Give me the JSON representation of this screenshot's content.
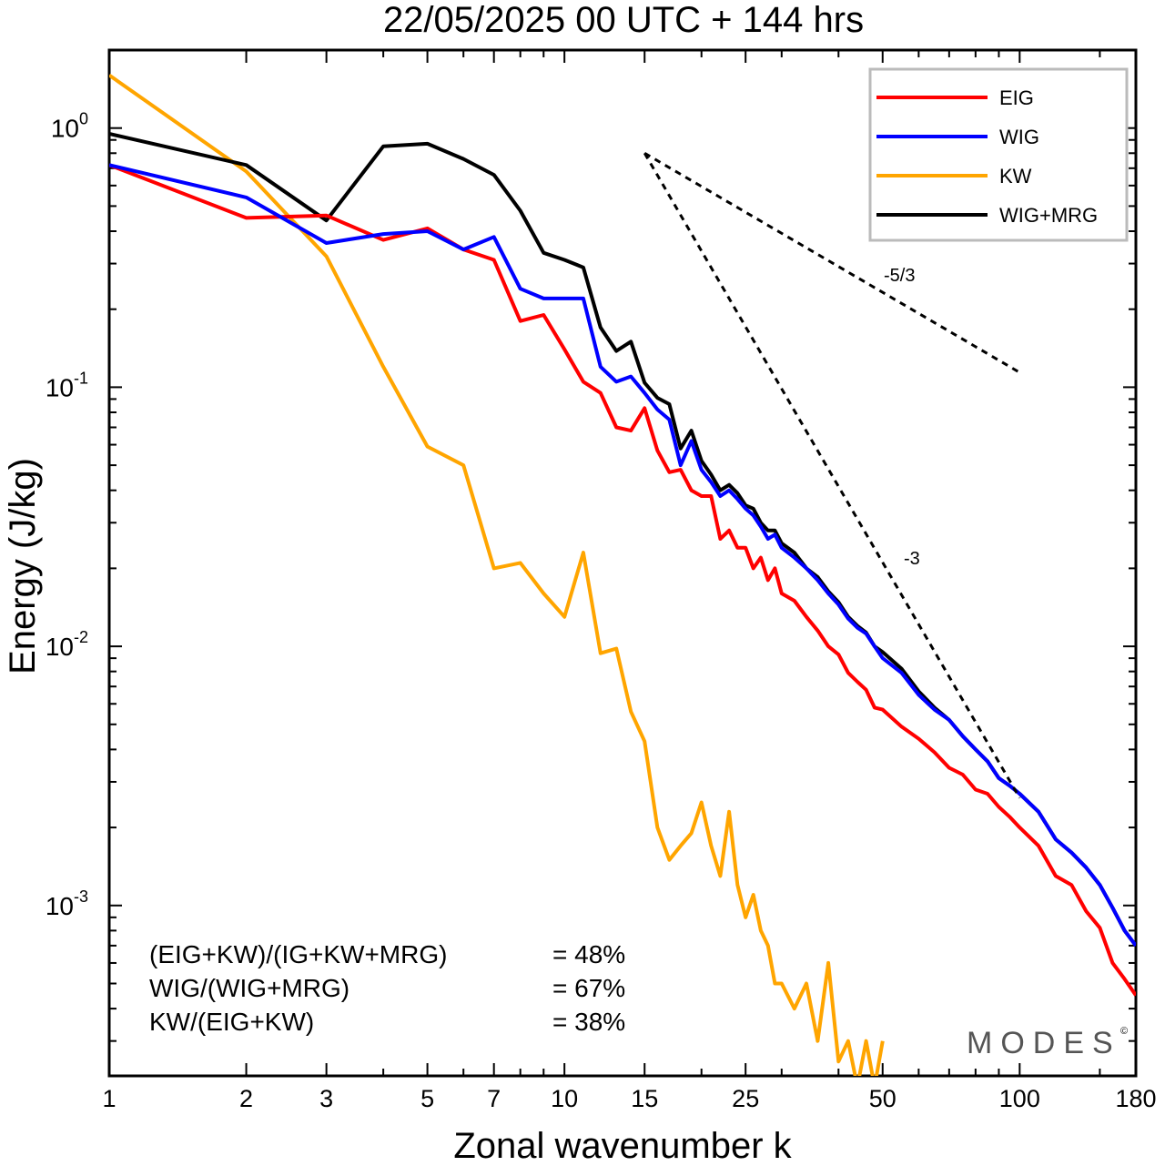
{
  "chart_data": {
    "type": "line",
    "title": "22/05/2025  00 UTC  + 144 hrs",
    "xlabel": "Zonal wavenumber k",
    "ylabel": "Energy (J/kg)",
    "xscale": "log",
    "yscale": "log",
    "xlim": [
      1,
      180
    ],
    "ylim": [
      0.00022,
      2.0
    ],
    "xticks": [
      1,
      2,
      3,
      5,
      7,
      10,
      15,
      25,
      50,
      100,
      180
    ],
    "xtick_labels": [
      "1",
      "2",
      "3",
      "5",
      "7",
      "10",
      "15",
      "25",
      "50",
      "100",
      "180"
    ],
    "yticks": [
      {
        "value": 1,
        "base": "10",
        "exp": "0"
      },
      {
        "value": 0.1,
        "base": "10",
        "exp": "-1"
      },
      {
        "value": 0.01,
        "base": "10",
        "exp": "-2"
      },
      {
        "value": 0.001,
        "base": "10",
        "exp": "-3"
      }
    ],
    "legend_position": "top-right",
    "grid": false,
    "series": [
      {
        "name": "EIG",
        "color": "#ff0000",
        "x": [
          1,
          2,
          3,
          4,
          5,
          6,
          7,
          8,
          9,
          10,
          11,
          12,
          13,
          14,
          15,
          16,
          17,
          18,
          19,
          20,
          21,
          22,
          23,
          24,
          25,
          26,
          27,
          28,
          29,
          30,
          32,
          34,
          36,
          38,
          40,
          42,
          44,
          46,
          48,
          50,
          55,
          60,
          65,
          70,
          75,
          80,
          85,
          90,
          95,
          100,
          110,
          120,
          130,
          140,
          150,
          160,
          170,
          180
        ],
        "values": [
          0.72,
          0.45,
          0.46,
          0.37,
          0.41,
          0.34,
          0.31,
          0.18,
          0.19,
          0.14,
          0.105,
          0.095,
          0.07,
          0.068,
          0.083,
          0.057,
          0.047,
          0.048,
          0.04,
          0.038,
          0.038,
          0.026,
          0.028,
          0.024,
          0.024,
          0.02,
          0.022,
          0.018,
          0.02,
          0.016,
          0.015,
          0.013,
          0.0115,
          0.01,
          0.0093,
          0.0079,
          0.0073,
          0.0068,
          0.0058,
          0.0057,
          0.0049,
          0.0044,
          0.0039,
          0.0034,
          0.0032,
          0.0028,
          0.0027,
          0.0024,
          0.0022,
          0.002,
          0.0017,
          0.0013,
          0.0012,
          0.00095,
          0.00082,
          0.0006,
          0.00052,
          0.00045
        ]
      },
      {
        "name": "WIG",
        "color": "#0000ff",
        "x": [
          1,
          2,
          3,
          4,
          5,
          6,
          7,
          8,
          9,
          10,
          11,
          12,
          13,
          14,
          15,
          16,
          17,
          18,
          19,
          20,
          21,
          22,
          23,
          24,
          25,
          26,
          27,
          28,
          29,
          30,
          32,
          34,
          36,
          38,
          40,
          42,
          44,
          46,
          48,
          50,
          55,
          60,
          65,
          70,
          75,
          80,
          85,
          90,
          95,
          100,
          110,
          120,
          130,
          140,
          150,
          160,
          170,
          180
        ],
        "values": [
          0.72,
          0.54,
          0.36,
          0.39,
          0.4,
          0.34,
          0.38,
          0.24,
          0.22,
          0.22,
          0.22,
          0.12,
          0.105,
          0.11,
          0.095,
          0.082,
          0.075,
          0.05,
          0.062,
          0.048,
          0.043,
          0.038,
          0.04,
          0.037,
          0.034,
          0.032,
          0.029,
          0.026,
          0.027,
          0.024,
          0.022,
          0.02,
          0.018,
          0.016,
          0.0145,
          0.0128,
          0.0118,
          0.0112,
          0.01,
          0.009,
          0.0079,
          0.0065,
          0.0057,
          0.0052,
          0.0045,
          0.004,
          0.0036,
          0.0031,
          0.0029,
          0.0027,
          0.0023,
          0.0018,
          0.0016,
          0.0014,
          0.0012,
          0.00098,
          0.0008,
          0.0007
        ]
      },
      {
        "name": "KW",
        "color": "#ffa500",
        "x": [
          1,
          2,
          3,
          4,
          5,
          6,
          7,
          8,
          9,
          10,
          11,
          12,
          13,
          14,
          15,
          16,
          17,
          18,
          19,
          20,
          21,
          22,
          23,
          24,
          25,
          26,
          27,
          28,
          29,
          30,
          32,
          34,
          36,
          38,
          40,
          42,
          44,
          46,
          48,
          50
        ],
        "values": [
          1.6,
          0.68,
          0.32,
          0.12,
          0.059,
          0.05,
          0.02,
          0.021,
          0.016,
          0.013,
          0.023,
          0.0094,
          0.0098,
          0.0056,
          0.0043,
          0.002,
          0.0015,
          0.0017,
          0.0019,
          0.0025,
          0.0017,
          0.0013,
          0.0023,
          0.0012,
          0.0009,
          0.0011,
          0.0008,
          0.0007,
          0.0005,
          0.0005,
          0.0004,
          0.0005,
          0.0003,
          0.0006,
          0.00025,
          0.0003,
          0.0002,
          0.0003,
          0.0002,
          0.0003
        ]
      },
      {
        "name": "WIG+MRG",
        "color": "#000000",
        "x": [
          1,
          2,
          3,
          4,
          5,
          6,
          7,
          8,
          9,
          10,
          11,
          12,
          13,
          14,
          15,
          16,
          17,
          18,
          19,
          20,
          21,
          22,
          23,
          24,
          25,
          26,
          27,
          28,
          29,
          30,
          32,
          34,
          36,
          38,
          40,
          42,
          44,
          46,
          48,
          50,
          55,
          60,
          65,
          70,
          75,
          80,
          85,
          90,
          95,
          100,
          110,
          120,
          130,
          140,
          150,
          160,
          170,
          180
        ],
        "values": [
          0.95,
          0.72,
          0.44,
          0.85,
          0.87,
          0.76,
          0.66,
          0.48,
          0.33,
          0.31,
          0.29,
          0.17,
          0.138,
          0.15,
          0.104,
          0.091,
          0.086,
          0.058,
          0.068,
          0.052,
          0.046,
          0.04,
          0.042,
          0.039,
          0.035,
          0.034,
          0.03,
          0.028,
          0.028,
          0.025,
          0.023,
          0.02,
          0.0185,
          0.0163,
          0.0148,
          0.013,
          0.012,
          0.0113,
          0.01,
          0.0095,
          0.0082,
          0.0067,
          0.0058,
          0.0052,
          0.0045,
          0.004,
          0.0036,
          0.0031,
          0.0029,
          0.0027,
          0.0023,
          0.0018,
          0.0016,
          0.0014,
          0.0012,
          0.00098,
          0.0008,
          0.0007
        ]
      }
    ],
    "reference_lines": [
      {
        "label": "-5/3",
        "x": [
          15,
          100
        ],
        "values": [
          0.8,
          0.114
        ],
        "style": "dashed",
        "color": "#000000"
      },
      {
        "label": "-3",
        "x": [
          15,
          100
        ],
        "values": [
          0.8,
          0.0026
        ],
        "style": "dashed",
        "color": "#000000"
      }
    ],
    "annotations": [
      {
        "label": "(EIG+KW)/(IG+KW+MRG)",
        "value": "= 48%"
      },
      {
        "label": "WIG/(WIG+MRG)",
        "value": "= 67%"
      },
      {
        "label": "KW/(EIG+KW)",
        "value": "= 38%"
      }
    ],
    "watermark": "MODES",
    "watermark_mark": "©"
  }
}
